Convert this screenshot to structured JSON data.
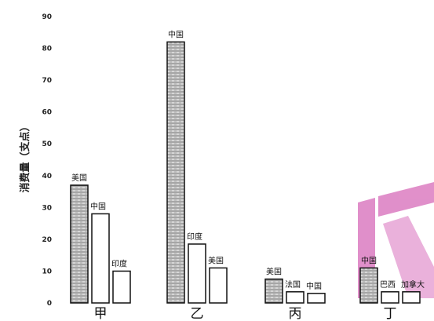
{
  "chart_data": {
    "type": "bar",
    "ylabel": "消费量（支点）",
    "ylim": [
      0,
      90
    ],
    "yticks": [
      0,
      10,
      20,
      30,
      40,
      50,
      60,
      70,
      80,
      90
    ],
    "grid": false,
    "legend": "none",
    "groups": [
      {
        "category": "甲",
        "bars": [
          {
            "label": "美国",
            "value": 37,
            "style": "hatched"
          },
          {
            "label": "中国",
            "value": 28,
            "style": "plain"
          },
          {
            "label": "印度",
            "value": 10,
            "style": "plain"
          }
        ]
      },
      {
        "category": "乙",
        "bars": [
          {
            "label": "中国",
            "value": 82,
            "style": "hatched"
          },
          {
            "label": "印度",
            "value": 18.5,
            "style": "plain"
          },
          {
            "label": "美国",
            "value": 11,
            "style": "plain"
          }
        ]
      },
      {
        "category": "丙",
        "bars": [
          {
            "label": "美国",
            "value": 7.5,
            "style": "hatched"
          },
          {
            "label": "法国",
            "value": 3.5,
            "style": "plain"
          },
          {
            "label": "中国",
            "value": 3,
            "style": "plain"
          }
        ]
      },
      {
        "category": "丁",
        "bars": [
          {
            "label": "中国",
            "value": 11,
            "style": "hatched"
          },
          {
            "label": "巴西",
            "value": 3.5,
            "style": "plain"
          },
          {
            "label": "加拿大",
            "value": 3.5,
            "style": "plain"
          }
        ]
      }
    ]
  },
  "colors": {
    "hatch": "#8a8a8a",
    "bar_stroke": "#111111",
    "plain_fill": "#ffffff",
    "watermark": "#c8359f"
  }
}
